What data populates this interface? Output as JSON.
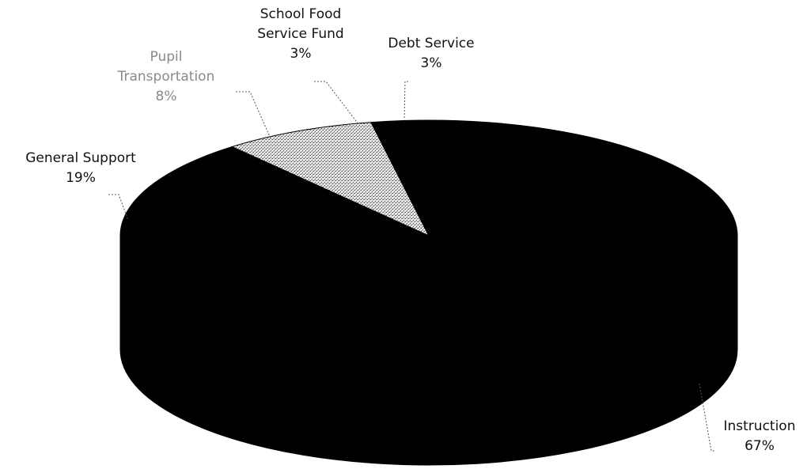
{
  "chart_data": {
    "type": "pie",
    "three_d": true,
    "title": "",
    "legend": "none",
    "slices": [
      {
        "label": "Debt Service",
        "value": 3,
        "value_label": "3%",
        "fill": "#000000"
      },
      {
        "label": "Instruction",
        "value": 67,
        "value_label": "67%",
        "fill": "#000000"
      },
      {
        "label": "General Support",
        "value": 19,
        "value_label": "19%",
        "fill": "#000000"
      },
      {
        "label": "Pupil Transportation",
        "value": 8,
        "value_label": "8%",
        "fill": "#9a9a9a"
      },
      {
        "label": "School Food Service Fund",
        "value": 3,
        "value_label": "3%",
        "fill": "#000000"
      }
    ]
  },
  "labels": {
    "school_food": {
      "lines": [
        "School Food",
        "Service Fund"
      ],
      "pct": "3%"
    },
    "debt_service": {
      "lines": [
        "Debt Service"
      ],
      "pct": "3%"
    },
    "pupil": {
      "lines": [
        "Pupil",
        "Transportation"
      ],
      "pct": "8%"
    },
    "general_support": {
      "lines": [
        "General Support"
      ],
      "pct": "19%"
    },
    "instruction": {
      "lines": [
        "Instruction"
      ],
      "pct": "67%"
    }
  }
}
